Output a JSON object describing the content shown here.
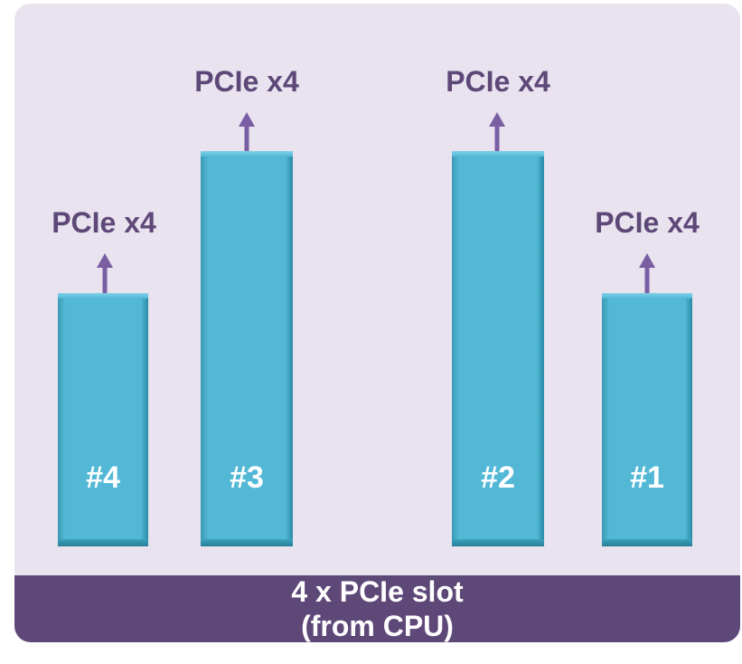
{
  "slots": [
    {
      "number": "#4",
      "label": "PCIe x4"
    },
    {
      "number": "#3",
      "label": "PCIe x4"
    },
    {
      "number": "#2",
      "label": "PCIe x4"
    },
    {
      "number": "#1",
      "label": "PCIe x4"
    }
  ],
  "footer": {
    "line1": "4 x PCIe slot",
    "line2": "(from CPU)"
  },
  "colors": {
    "panel_bg": "#e8e3ef",
    "slot_fill": "#52b8d6",
    "accent_purple": "#5e4878",
    "arrow": "#7a5ea3"
  }
}
